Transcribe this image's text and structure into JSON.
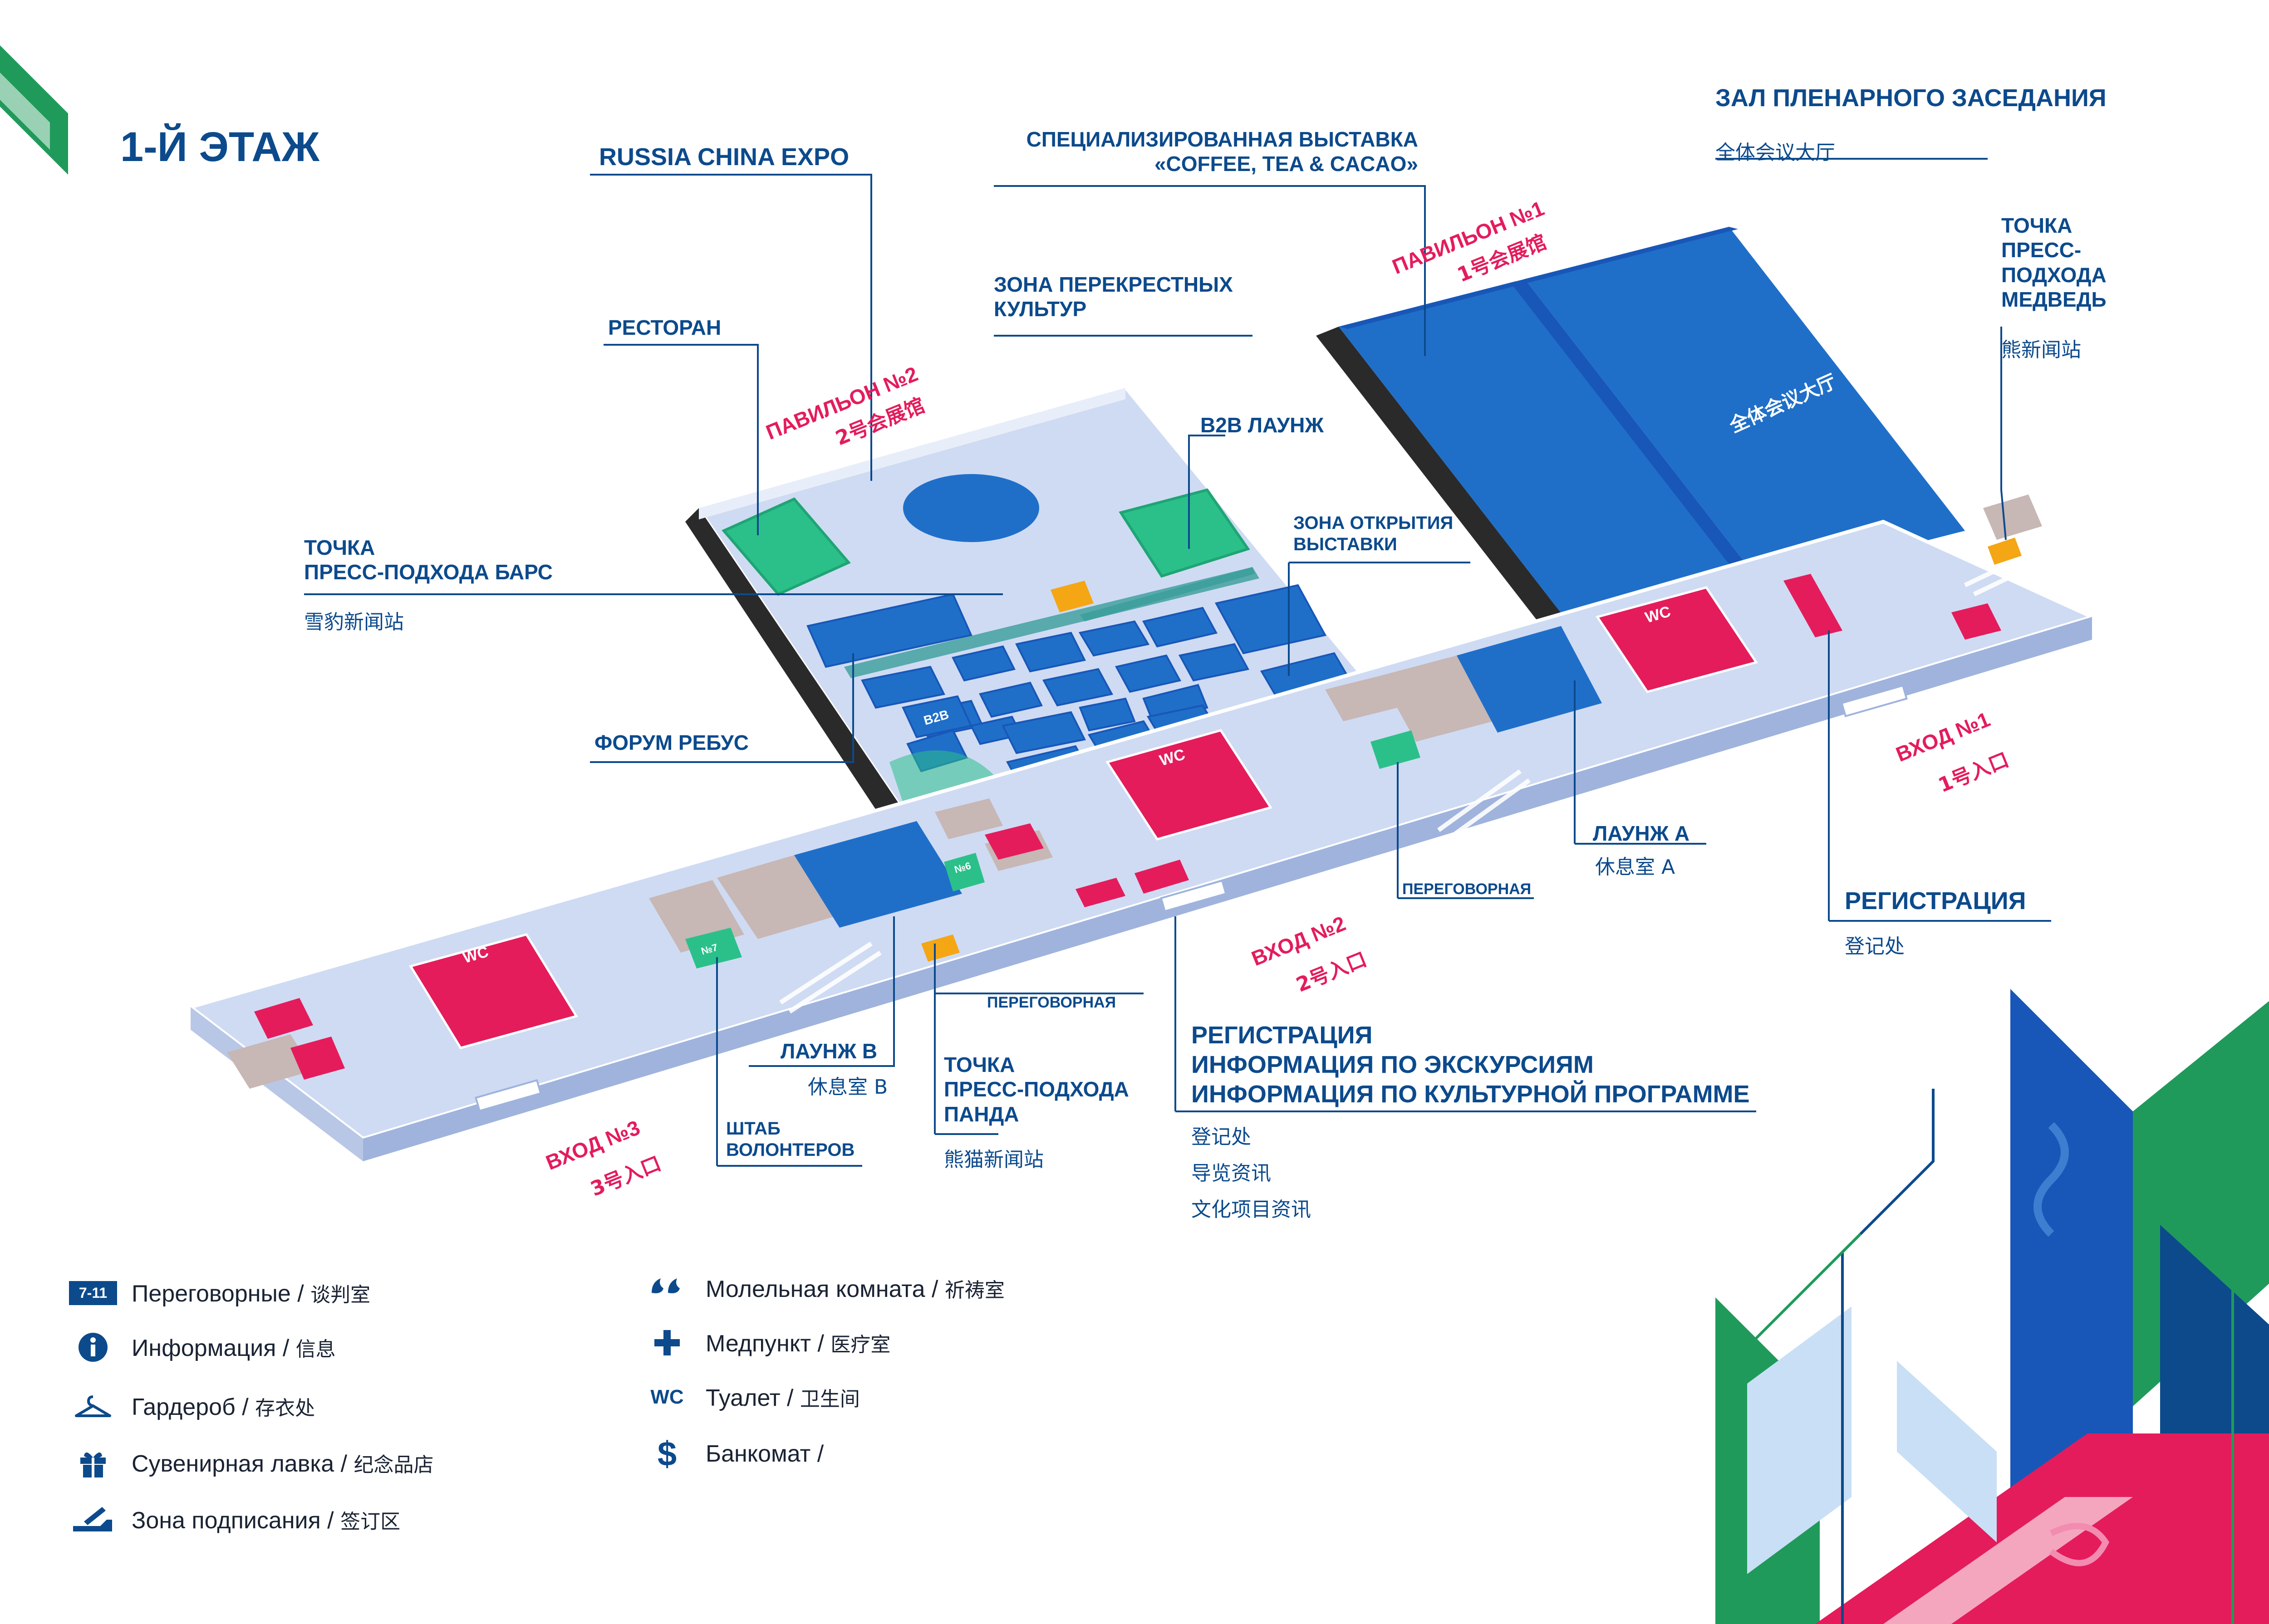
{
  "floor_title": "1-Й ЭТАЖ",
  "colors": {
    "navy": "#0c4a8c",
    "blue_zone": "#1f6fc9",
    "deep_blue": "#1857b8",
    "pink": "#e41c5c",
    "green": "#2bc08a",
    "floor": "#cfdbf3",
    "gray_box": "#c7b7b5",
    "orange": "#f5a614"
  },
  "labels": {
    "russia_china_expo": "RUSSIA CHINA EXPO",
    "coffee_tea": "СПЕЦИАЛИЗИРОВАННАЯ ВЫСТАВКА\n«COFFEE, TEA & CACAO»",
    "plenary_hall": "ЗАЛ ПЛЕНАРНОГО ЗАСЕДАНИЯ",
    "plenary_hall_cn": "全体会议大厅",
    "plenary_on_map": "ЗАЛ ПЛЕНАРНОГО\nЗАСЕДАНИЯ",
    "plenary_on_map_cn": "全体会议大厅",
    "bear_point": "ТОЧКА\nПРЕСС-\nПОДХОДА\nМЕДВЕДЬ",
    "bear_point_cn": "熊新闻站",
    "cross_cultures": "ЗОНА ПЕРЕКРЕСТНЫХ\nКУЛЬТУР",
    "restaurant": "РЕСТОРАН",
    "pavilion2": "ПАВИЛЬОН №2",
    "pavilion2_cn": "2号会展馆",
    "pavilion1": "ПАВИЛЬОН №1",
    "pavilion1_cn": "1号会展馆",
    "b2b_lounge": "B2B ЛАУНЖ",
    "opening_zone": "ЗОНА ОТКРЫТИЯ\nВЫСТАВКИ",
    "bars_point": "ТОЧКА\nПРЕСС-ПОДХОДА БАРС",
    "bars_point_cn": "雪豹新闻站",
    "forum_rebus": "ФОРУМ РЕБУС",
    "lounge_a": "ЛАУНЖ А",
    "lounge_a_cn": "休息室 A",
    "meeting_room_1": "ПЕРЕГОВОРНАЯ",
    "meeting_room_2": "ПЕРЕГОВОРНАЯ",
    "registration_right": "РЕГИСТРАЦИЯ",
    "registration_right_cn": "登记处",
    "entrance1": "ВХОД №1",
    "entrance1_cn": "1号入口",
    "entrance2": "ВХОД №2",
    "entrance2_cn": "2号入口",
    "entrance3": "ВХОД №3",
    "entrance3_cn": "3号入口",
    "lounge_b": "ЛАУНЖ B",
    "lounge_b_cn": "休息室 B",
    "panda_point": "ТОЧКА\nПРЕСС-ПОДХОДА\nПАНДА",
    "panda_point_cn": "熊猫新闻站",
    "volunteers": "ШТАБ\nВОЛОНТЕРОВ",
    "registration_main": "РЕГИСТРАЦИЯ\nИНФОРМАЦИЯ ПО ЭКСКУРСИЯМ\nИНФОРМАЦИЯ ПО КУЛЬТУРНОЙ ПРОГРАММЕ",
    "registration_main_cn1": "登记处",
    "registration_main_cn2": "导览资讯",
    "registration_main_cn3": "文化项目资讯"
  },
  "map_tags": {
    "wc": "WC",
    "b2b": "B2B",
    "room6": "№6",
    "room7": "№7"
  },
  "legend": [
    {
      "icon": "badge",
      "badge_text": "7-11",
      "ru": "Переговорные",
      "cn": "谈判室",
      "name": "meeting-rooms"
    },
    {
      "icon": "info-icon",
      "ru": "Информация",
      "cn": "信息",
      "name": "information"
    },
    {
      "icon": "hanger-icon",
      "ru": "Гардероб",
      "cn": "存衣处",
      "name": "cloakroom"
    },
    {
      "icon": "gift-icon",
      "ru": "Сувенирная лавка",
      "cn": "纪念品店",
      "name": "souvenir-shop"
    },
    {
      "icon": "signing-icon",
      "ru": "Зона подписания",
      "cn": "签订区",
      "name": "signing-zone"
    },
    {
      "icon": "prayer-icon",
      "ru": "Молельная комната",
      "cn": "祈祷室",
      "name": "prayer-room"
    },
    {
      "icon": "medical-cross-icon",
      "ru": "Медпункт",
      "cn": "医疗室",
      "name": "first-aid"
    },
    {
      "icon": "wc-icon",
      "badge_text": "WC",
      "ru": "Туалет",
      "cn": "卫生间",
      "name": "toilet"
    },
    {
      "icon": "dollar-icon",
      "badge_text": "$",
      "ru": "Банкомат",
      "cn": "",
      "name": "atm"
    }
  ]
}
